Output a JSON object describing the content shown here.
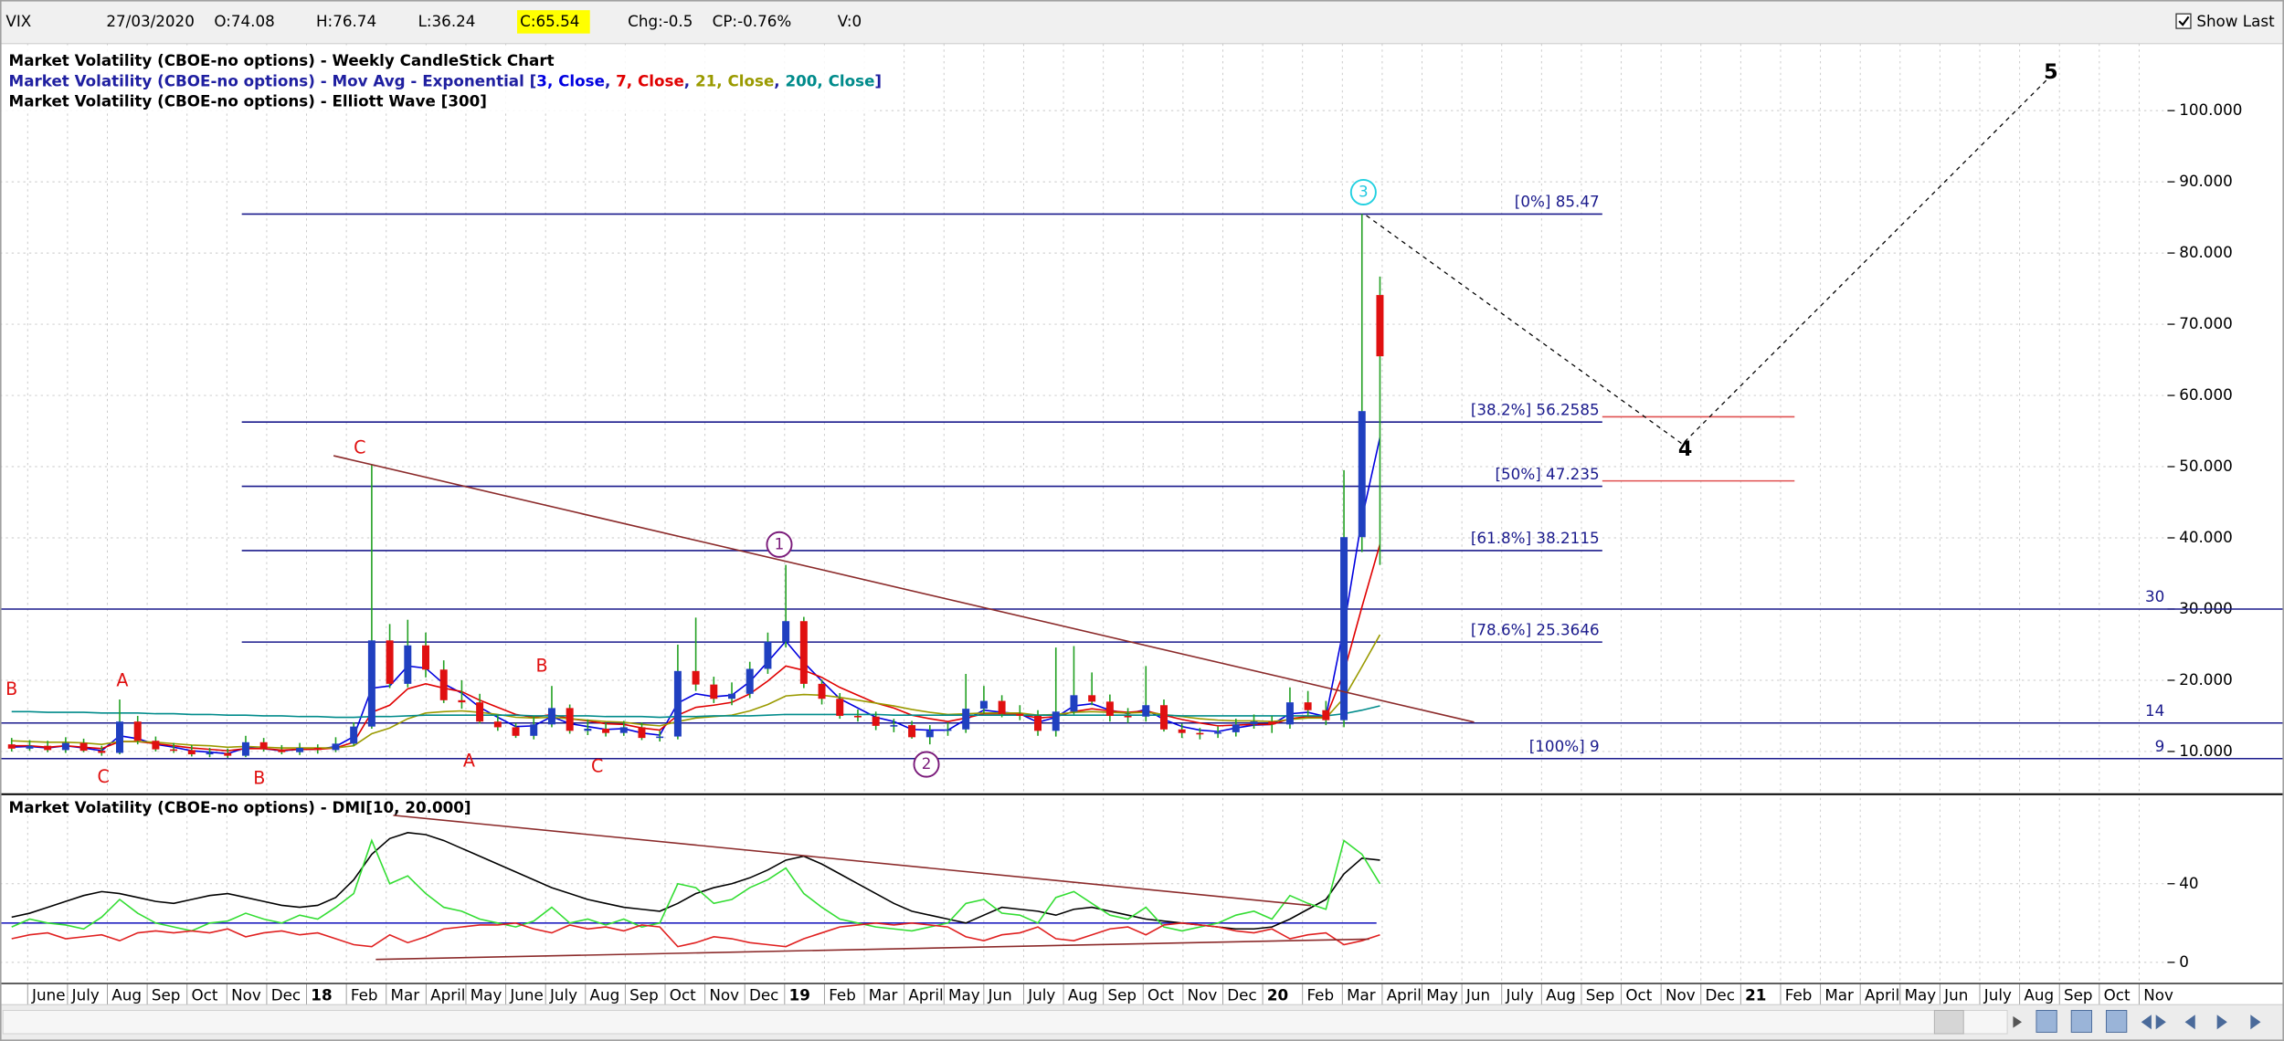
{
  "header": {
    "symbol": "VIX",
    "date": "27/03/2020",
    "open": "O:74.08",
    "high": "H:76.74",
    "low": "L:36.24",
    "close": "C:65.54",
    "change": "Chg:-0.5",
    "change_pct": "CP:-0.76%",
    "volume": "V:0",
    "show_last": "Show Last"
  },
  "x_axis": {
    "labels": [
      "June",
      "July",
      "Aug",
      "Sep",
      "Oct",
      "Nov",
      "Dec",
      "18",
      "Feb",
      "Mar",
      "April",
      "May",
      "June",
      "July",
      "Aug",
      "Sep",
      "Oct",
      "Nov",
      "Dec",
      "19",
      "Feb",
      "Mar",
      "April",
      "May",
      "Jun",
      "July",
      "Aug",
      "Sep",
      "Oct",
      "Nov",
      "Dec",
      "20",
      "Feb",
      "Mar",
      "April",
      "May",
      "Jun",
      "July",
      "Aug",
      "Sep",
      "Oct",
      "Nov",
      "Dec",
      "21",
      "Feb",
      "Mar",
      "April",
      "May",
      "Jun",
      "July",
      "Aug",
      "Sep",
      "Oct",
      "Nov"
    ]
  },
  "chart_data": [
    {
      "type": "candlestick",
      "title": "Market Volatility (CBOE-no options) - Weekly CandleStick Chart",
      "ma_title": "Market Volatility (CBOE-no options) - Mov Avg - Exponential [",
      "ma_separator": ", ",
      "ma_close": "]",
      "legend_color": "#1f1fa0",
      "wave_title": "Market Volatility (CBOE-no options) - Elliott Wave [300]",
      "open": [
        11.0,
        10.4,
        10.8,
        10.2,
        11.2,
        10.1,
        9.8,
        14.2,
        11.5,
        10.3,
        10.2,
        9.6,
        9.8,
        9.4,
        11.3,
        10.3,
        9.9,
        10.5,
        10.2,
        11.1,
        13.5,
        25.6,
        19.5,
        24.9,
        21.5,
        17.2,
        16.9,
        14.2,
        13.4,
        12.2,
        13.8,
        16.1,
        12.9,
        13.2,
        12.6,
        13.4,
        11.9,
        12.1,
        21.3,
        19.4,
        17.4,
        18.1,
        21.6,
        25.4,
        28.3,
        19.5,
        17.4,
        15.0,
        14.9,
        13.6,
        13.7,
        12.0,
        12.9,
        13.1,
        16.0,
        17.1,
        15.3,
        15.0,
        12.9,
        15.6,
        17.9,
        17.0,
        15.0,
        14.9,
        16.5,
        13.1,
        12.6,
        12.5,
        12.7,
        13.8,
        14.2,
        13.8,
        16.9,
        15.8,
        14.4,
        40.1,
        74.1
      ],
      "high": [
        11.9,
        11.6,
        11.5,
        12.0,
        11.8,
        10.8,
        17.3,
        15.0,
        12.1,
        11.2,
        10.9,
        10.5,
        10.4,
        12.2,
        11.9,
        10.9,
        11.2,
        11.0,
        12.0,
        14.1,
        50.3,
        27.9,
        28.5,
        26.7,
        22.8,
        20.0,
        18.1,
        15.1,
        14.0,
        15.0,
        19.2,
        16.6,
        14.5,
        14.0,
        14.3,
        14.1,
        12.9,
        25.0,
        28.8,
        20.5,
        19.7,
        22.6,
        26.7,
        36.2,
        28.9,
        20.1,
        18.2,
        15.9,
        15.6,
        14.6,
        14.3,
        13.7,
        14.1,
        20.9,
        19.2,
        17.9,
        16.5,
        15.8,
        24.6,
        24.8,
        21.1,
        18.0,
        16.1,
        22.0,
        17.3,
        13.9,
        13.3,
        13.5,
        14.6,
        15.2,
        15.0,
        19.0,
        18.5,
        17.1,
        49.5,
        85.47,
        76.7
      ],
      "low": [
        10.0,
        10.1,
        9.9,
        9.8,
        9.9,
        9.4,
        9.6,
        11.0,
        10.0,
        9.8,
        9.3,
        9.2,
        9.1,
        9.2,
        10.0,
        9.6,
        9.5,
        9.7,
        9.9,
        10.8,
        13.2,
        18.9,
        19.0,
        20.4,
        16.8,
        16.0,
        13.9,
        12.9,
        11.9,
        11.7,
        13.4,
        12.5,
        12.3,
        12.1,
        12.2,
        11.6,
        11.4,
        11.7,
        18.5,
        16.8,
        16.5,
        17.5,
        20.9,
        24.6,
        18.9,
        16.6,
        14.6,
        14.2,
        13.0,
        12.7,
        11.8,
        11.0,
        12.2,
        12.6,
        15.3,
        14.8,
        14.4,
        12.2,
        12.1,
        15.2,
        16.5,
        14.2,
        14.0,
        14.2,
        12.8,
        11.9,
        11.7,
        11.9,
        12.1,
        13.2,
        12.6,
        13.2,
        15.0,
        13.7,
        13.4,
        38.0,
        36.2
      ],
      "close": [
        10.4,
        10.8,
        10.2,
        11.2,
        10.1,
        9.8,
        14.2,
        11.5,
        10.3,
        10.2,
        9.6,
        9.8,
        9.4,
        11.3,
        10.3,
        9.9,
        10.5,
        10.2,
        11.1,
        13.5,
        25.6,
        19.5,
        24.9,
        21.5,
        17.2,
        16.9,
        14.2,
        13.4,
        12.2,
        13.8,
        16.1,
        12.9,
        13.2,
        12.6,
        13.4,
        11.9,
        12.1,
        21.3,
        19.4,
        17.4,
        18.1,
        21.6,
        25.4,
        28.3,
        19.5,
        17.4,
        15.0,
        14.9,
        13.6,
        13.7,
        12.0,
        12.9,
        13.1,
        16.0,
        17.1,
        15.3,
        15.0,
        12.9,
        15.6,
        17.9,
        17.0,
        15.0,
        14.9,
        16.5,
        13.1,
        12.6,
        12.5,
        12.7,
        13.8,
        14.2,
        13.8,
        16.9,
        15.8,
        14.4,
        40.1,
        57.8,
        65.5
      ],
      "up_color": "#2040c0",
      "down_color": "#e01010",
      "wick_color": "#22a022",
      "series": [
        {
          "name": "3, Close",
          "color": "#0000e0",
          "values": [
            10.6,
            10.7,
            10.5,
            10.8,
            10.5,
            10.1,
            12.2,
            11.8,
            11.0,
            10.6,
            10.1,
            9.9,
            9.7,
            10.5,
            10.4,
            10.1,
            10.3,
            10.3,
            10.7,
            12.1,
            18.9,
            19.2,
            22.0,
            21.7,
            19.5,
            18.2,
            16.2,
            14.8,
            13.5,
            13.6,
            14.9,
            13.9,
            13.5,
            13.1,
            13.2,
            12.6,
            12.3,
            16.8,
            18.1,
            17.7,
            17.9,
            19.8,
            22.6,
            25.5,
            22.5,
            19.9,
            17.4,
            16.1,
            14.8,
            14.2,
            13.1,
            13.0,
            13.0,
            14.5,
            15.8,
            15.5,
            15.3,
            14.1,
            14.8,
            16.4,
            16.7,
            15.8,
            15.3,
            15.9,
            14.5,
            13.5,
            13.0,
            12.8,
            13.3,
            13.7,
            13.8,
            15.3,
            15.5,
            14.9,
            27.5,
            42.7,
            54.1
          ]
        },
        {
          "name": "7, Close",
          "color": "#e00000",
          "values": [
            10.8,
            10.8,
            10.6,
            10.8,
            10.6,
            10.4,
            11.4,
            11.4,
            11.1,
            10.8,
            10.5,
            10.3,
            10.1,
            10.4,
            10.4,
            10.2,
            10.3,
            10.3,
            10.5,
            11.3,
            15.5,
            16.5,
            18.8,
            19.5,
            18.9,
            18.4,
            17.2,
            16.2,
            15.2,
            14.8,
            15.2,
            14.6,
            14.3,
            13.9,
            13.8,
            13.3,
            13.0,
            15.1,
            16.2,
            16.5,
            16.9,
            18.1,
            19.9,
            22.0,
            21.4,
            20.4,
            19.0,
            17.9,
            16.8,
            16.1,
            15.1,
            14.6,
            14.2,
            14.7,
            15.3,
            15.3,
            15.2,
            14.7,
            14.9,
            15.6,
            16.0,
            15.7,
            15.5,
            15.7,
            15.1,
            14.5,
            14.0,
            13.6,
            13.7,
            13.8,
            13.8,
            14.6,
            14.9,
            14.8,
            21.1,
            30.3,
            39.1
          ]
        },
        {
          "name": "21, Close",
          "color": "#9a9a00",
          "values": [
            11.5,
            11.4,
            11.3,
            11.3,
            11.2,
            11.0,
            11.4,
            11.4,
            11.3,
            11.1,
            10.9,
            10.8,
            10.6,
            10.7,
            10.6,
            10.5,
            10.5,
            10.5,
            10.5,
            10.8,
            12.5,
            13.3,
            14.6,
            15.4,
            15.6,
            15.7,
            15.5,
            15.2,
            14.8,
            14.7,
            14.8,
            14.6,
            14.4,
            14.2,
            14.1,
            13.8,
            13.6,
            14.2,
            14.7,
            14.9,
            15.1,
            15.7,
            16.6,
            17.8,
            18.0,
            17.9,
            17.6,
            17.2,
            16.8,
            16.4,
            15.9,
            15.5,
            15.2,
            15.3,
            15.4,
            15.4,
            15.4,
            15.1,
            15.2,
            15.5,
            15.6,
            15.5,
            15.4,
            15.5,
            15.2,
            14.9,
            14.6,
            14.4,
            14.3,
            14.3,
            14.2,
            14.5,
            14.7,
            14.7,
            17.5,
            21.9,
            26.4
          ]
        },
        {
          "name": "200, Close",
          "color": "#008b8b",
          "values": [
            15.6,
            15.6,
            15.5,
            15.5,
            15.5,
            15.4,
            15.4,
            15.4,
            15.3,
            15.3,
            15.2,
            15.2,
            15.1,
            15.1,
            15.0,
            15.0,
            14.9,
            14.9,
            14.8,
            14.8,
            14.9,
            14.9,
            15.0,
            15.1,
            15.1,
            15.1,
            15.1,
            15.1,
            15.1,
            15.0,
            15.0,
            15.0,
            15.0,
            14.9,
            14.9,
            14.9,
            14.8,
            14.9,
            14.9,
            15.0,
            15.0,
            15.0,
            15.1,
            15.2,
            15.2,
            15.2,
            15.2,
            15.2,
            15.2,
            15.1,
            15.1,
            15.1,
            15.1,
            15.1,
            15.1,
            15.1,
            15.1,
            15.1,
            15.1,
            15.1,
            15.1,
            15.1,
            15.1,
            15.1,
            15.1,
            15.0,
            15.0,
            15.0,
            15.0,
            15.0,
            15.0,
            15.0,
            15.0,
            15.0,
            15.3,
            15.8,
            16.4
          ]
        }
      ],
      "ylim": [
        4.1,
        109.4
      ],
      "yticks": [
        {
          "value": 10,
          "label": "10.000"
        },
        {
          "value": 20,
          "label": "20.000"
        },
        {
          "value": 30,
          "label": "30.000"
        },
        {
          "value": 40,
          "label": "40.000"
        },
        {
          "value": 50,
          "label": "50.000"
        },
        {
          "value": 60,
          "label": "60.000"
        },
        {
          "value": 70,
          "label": "70.000"
        },
        {
          "value": 80,
          "label": "80.000"
        },
        {
          "value": 90,
          "label": "90.000"
        },
        {
          "value": 100,
          "label": "100.000"
        }
      ],
      "grid": true,
      "fib_color": "#1a1a8c",
      "fib_levels": [
        {
          "value": 85.47,
          "label": "[0%] 85.47"
        },
        {
          "value": 56.2585,
          "label": "[38.2%] 56.2585"
        },
        {
          "value": 47.235,
          "label": "[50%] 47.235"
        },
        {
          "value": 38.2115,
          "label": "[61.8%] 38.2115"
        },
        {
          "value": 25.3646,
          "label": "[78.6%] 25.3646"
        },
        {
          "value": 9,
          "label": "[100%] 9"
        }
      ],
      "levels": [
        30,
        14,
        9
      ],
      "extension_color": "#e05050",
      "extension_lines": [
        57,
        48
      ],
      "wave_labels": [
        "1",
        "2",
        "3",
        "4",
        "5"
      ],
      "abc_labels": [
        "B",
        "C",
        "A",
        "B",
        "C",
        "A",
        "B",
        "C"
      ]
    },
    {
      "type": "line",
      "title": "Market Volatility (CBOE-no options) - DMI[10, 20.000]",
      "series": [
        {
          "color": "#000000",
          "values": [
            23,
            25,
            28,
            31,
            34,
            36,
            35,
            33,
            31,
            30,
            32,
            34,
            35,
            33,
            31,
            29,
            28,
            29,
            33,
            42,
            55,
            63,
            66,
            65,
            62,
            58,
            54,
            50,
            46,
            42,
            38,
            35,
            32,
            30,
            28,
            27,
            26,
            30,
            35,
            38,
            40,
            43,
            47,
            52,
            54,
            50,
            45,
            40,
            35,
            30,
            26,
            24,
            22,
            20,
            24,
            28,
            27,
            26,
            24,
            27,
            28,
            26,
            24,
            22,
            21,
            20,
            19,
            18,
            17,
            17,
            18,
            22,
            27,
            32,
            45,
            53,
            52
          ]
        },
        {
          "color": "#33dd33",
          "values": [
            18,
            22,
            20,
            19,
            17,
            23,
            32,
            25,
            20,
            18,
            16,
            20,
            21,
            25,
            22,
            20,
            24,
            22,
            28,
            35,
            62,
            40,
            44,
            35,
            28,
            26,
            22,
            20,
            18,
            21,
            28,
            20,
            22,
            19,
            22,
            18,
            20,
            40,
            38,
            30,
            32,
            38,
            42,
            48,
            35,
            28,
            22,
            20,
            18,
            17,
            16,
            18,
            20,
            30,
            32,
            25,
            24,
            20,
            33,
            36,
            30,
            24,
            22,
            28,
            18,
            16,
            18,
            20,
            24,
            26,
            22,
            34,
            30,
            27,
            62,
            55,
            40
          ]
        },
        {
          "color": "#e02020",
          "values": [
            12,
            14,
            15,
            12,
            13,
            14,
            11,
            15,
            16,
            15,
            16,
            15,
            17,
            13,
            15,
            16,
            14,
            15,
            12,
            9,
            8,
            14,
            10,
            13,
            17,
            18,
            19,
            19,
            20,
            17,
            15,
            19,
            17,
            18,
            16,
            19,
            18,
            8,
            10,
            13,
            12,
            10,
            9,
            8,
            12,
            15,
            18,
            19,
            20,
            19,
            20,
            19,
            18,
            13,
            11,
            14,
            15,
            18,
            12,
            11,
            14,
            17,
            18,
            14,
            19,
            20,
            19,
            18,
            16,
            15,
            17,
            12,
            14,
            15,
            9,
            11,
            14
          ]
        }
      ],
      "level": 20,
      "level_color": "#2020c0",
      "ylim": [
        -10.4,
        83.7
      ],
      "yticks": [
        0,
        40
      ],
      "grid": true
    }
  ]
}
